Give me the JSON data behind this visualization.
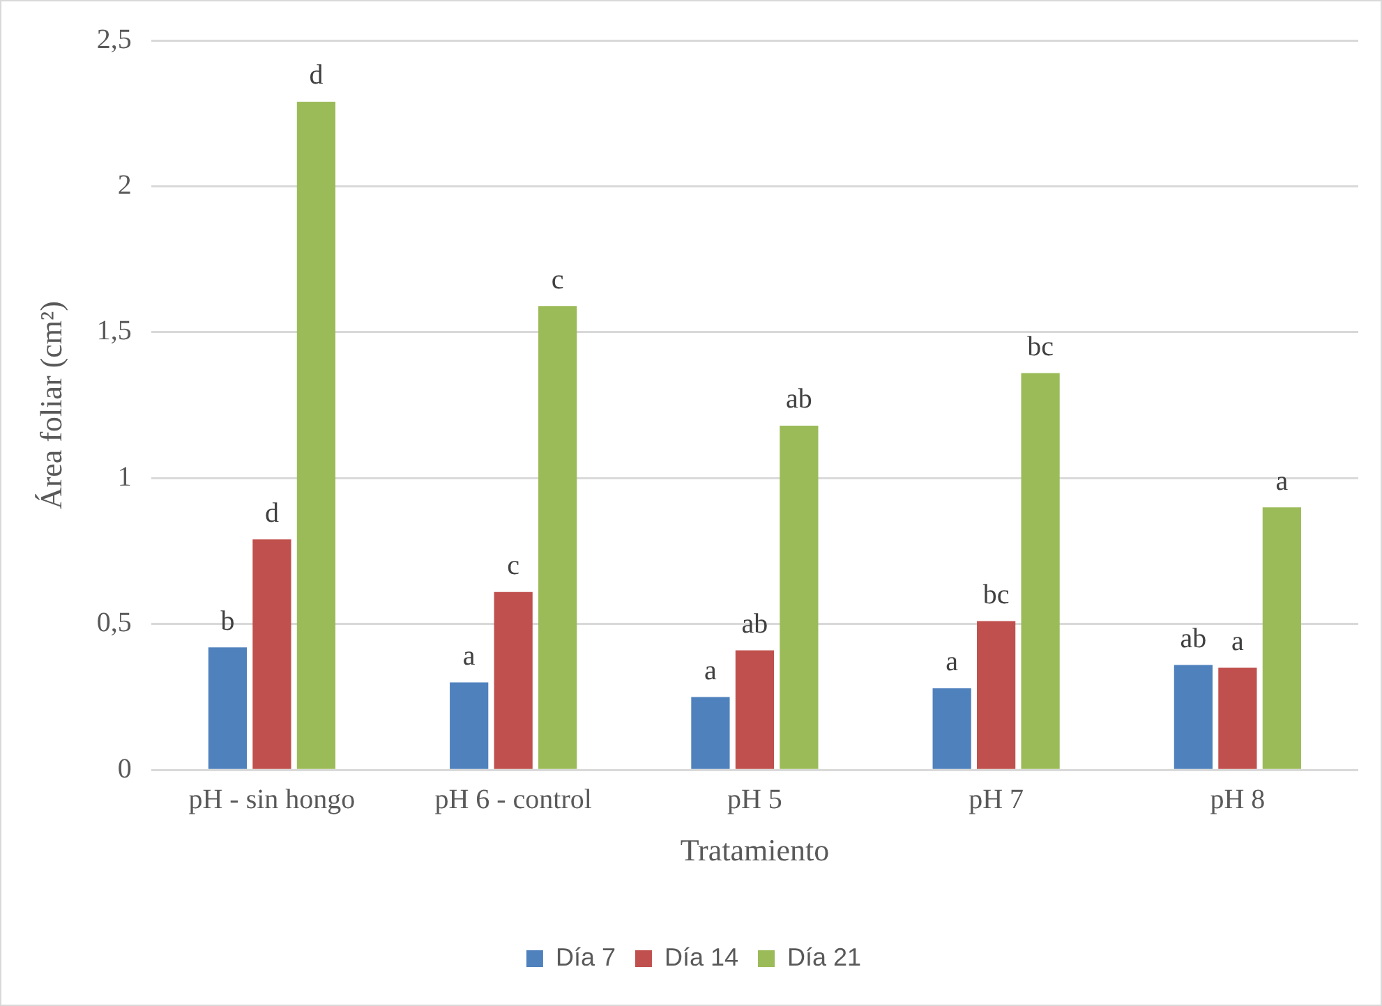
{
  "chart_data": {
    "type": "bar",
    "xlabel": "Tratamiento",
    "ylabel": "Área foliar (cm²)",
    "categories": [
      "pH - sin hongo",
      "pH 6 - control",
      "pH 5",
      "pH 7",
      "pH 8"
    ],
    "series": [
      {
        "name": "Día 7",
        "color": "#4f81bd",
        "values": [
          0.42,
          0.3,
          0.25,
          0.28,
          0.36
        ],
        "value_labels": [
          "b",
          "a",
          "a",
          "a",
          "ab"
        ]
      },
      {
        "name": "Día 14",
        "color": "#c0504d",
        "values": [
          0.79,
          0.61,
          0.41,
          0.51,
          0.35
        ],
        "value_labels": [
          "d",
          "c",
          "ab",
          "bc",
          "a"
        ]
      },
      {
        "name": "Día 21",
        "color": "#9bbb59",
        "values": [
          2.29,
          1.59,
          1.18,
          1.36,
          0.9
        ],
        "value_labels": [
          "d",
          "c",
          "ab",
          "bc",
          "a"
        ]
      }
    ],
    "ylim": [
      0,
      2.5
    ],
    "yticks": [
      0,
      {
        "value": 0.5,
        "label": "0,5"
      },
      1,
      {
        "value": 1.5,
        "label": "1,5"
      },
      2,
      {
        "value": 2.5,
        "label": "2,5"
      }
    ],
    "grid": "y",
    "legend": "bottom"
  }
}
